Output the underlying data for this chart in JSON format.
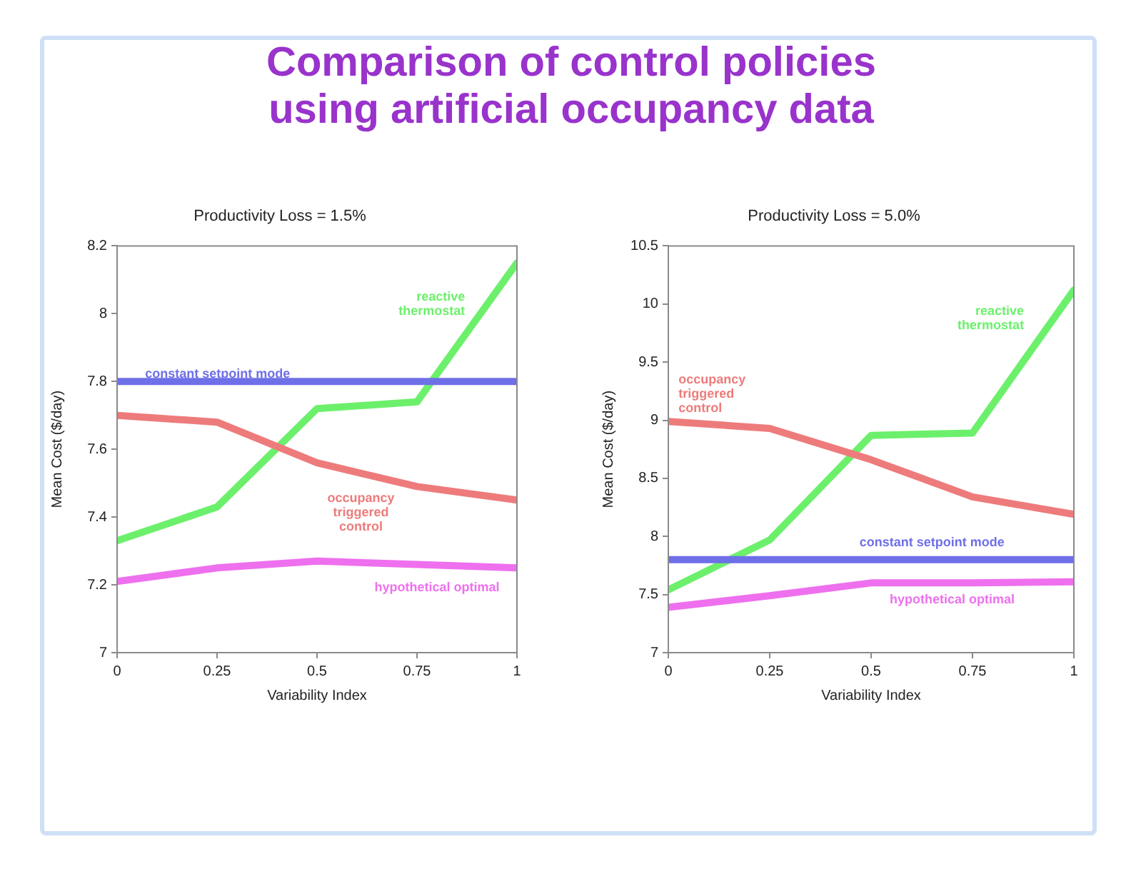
{
  "chart_data": [
    {
      "type": "other",
      "title": "Comparison of control policies using artificial occupancy data"
    },
    {
      "type": "line",
      "title": "Productivity Loss = 1.5%",
      "xlabel": "Variability Index",
      "ylabel": "Mean Cost ($/day)",
      "x": [
        0,
        0.25,
        0.5,
        0.75,
        1
      ],
      "xlim": [
        0,
        1
      ],
      "xticks": [
        0,
        0.25,
        0.5,
        0.75,
        1
      ],
      "ylim": [
        7,
        8.2
      ],
      "yticks": [
        7,
        7.2,
        7.4,
        7.6,
        7.8,
        8,
        8.2
      ],
      "grid": false,
      "legend": false,
      "marker": "none",
      "line_style": "solid",
      "series": [
        {
          "name": "constant setpoint mode",
          "color": "#6f6fe8",
          "values": [
            7.8,
            7.8,
            7.8,
            7.8,
            7.8
          ]
        },
        {
          "name": "occupancy triggered control",
          "color": "#ee7b7b",
          "values": [
            7.7,
            7.68,
            7.56,
            7.49,
            7.45
          ]
        },
        {
          "name": "reactive thermostat",
          "color": "#6cf06c",
          "values": [
            7.33,
            7.43,
            7.72,
            7.74,
            8.15
          ]
        },
        {
          "name": "hypothetical optimal",
          "color": "#ee70ee",
          "values": [
            7.21,
            7.25,
            7.27,
            7.26,
            7.25
          ]
        }
      ]
    },
    {
      "type": "line",
      "title": "Productivity Loss = 5.0%",
      "xlabel": "Variability Index",
      "ylabel": "Mean Cost ($/day)",
      "x": [
        0,
        0.25,
        0.5,
        0.75,
        1
      ],
      "xlim": [
        0,
        1
      ],
      "xticks": [
        0,
        0.25,
        0.5,
        0.75,
        1
      ],
      "ylim": [
        7,
        10.5
      ],
      "yticks": [
        7,
        7.5,
        8,
        8.5,
        9,
        9.5,
        10,
        10.5
      ],
      "grid": false,
      "legend": false,
      "marker": "none",
      "line_style": "solid",
      "series": [
        {
          "name": "constant setpoint mode",
          "color": "#6f6fe8",
          "values": [
            7.8,
            7.8,
            7.8,
            7.8,
            7.8
          ]
        },
        {
          "name": "occupancy triggered control",
          "color": "#ee7b7b",
          "values": [
            8.99,
            8.93,
            8.66,
            8.34,
            8.19
          ]
        },
        {
          "name": "reactive thermostat",
          "color": "#6cf06c",
          "values": [
            7.54,
            7.97,
            8.87,
            8.89,
            10.12
          ]
        },
        {
          "name": "hypothetical optimal",
          "color": "#ee70ee",
          "values": [
            7.39,
            7.49,
            7.6,
            7.6,
            7.61
          ]
        }
      ]
    }
  ]
}
